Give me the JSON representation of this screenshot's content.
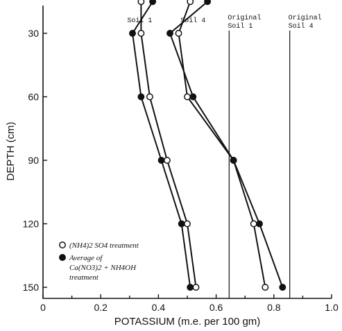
{
  "chart_data": {
    "type": "line",
    "xlabel": "POTASSIUM (m.e. per 100 gm)",
    "ylabel": "DEPTH (cm)",
    "xlim": [
      0,
      1.0
    ],
    "ylim": [
      150,
      0
    ],
    "x_ticks": [
      "0",
      "0.2",
      "0.4",
      "0.6",
      "0.8",
      "1.0"
    ],
    "x_tick_values": [
      0,
      0.2,
      0.4,
      0.6,
      0.8,
      1.0
    ],
    "y_ticks": [
      "30",
      "60",
      "90",
      "120",
      "150"
    ],
    "y_tick_values": [
      30,
      60,
      90,
      120,
      150
    ],
    "y_inverted": true,
    "grid": false,
    "legend_position": "bottom-left",
    "series": [
      {
        "name": "(NH4)2 SO4 treatment",
        "soil": "Soil 1",
        "marker": "open-circle",
        "points": [
          [
            0.34,
            15
          ],
          [
            0.34,
            30
          ],
          [
            0.37,
            60
          ],
          [
            0.43,
            90
          ],
          [
            0.5,
            120
          ],
          [
            0.53,
            150
          ]
        ]
      },
      {
        "name": "Average of Ca(NO3)2 + NH4OH treatment",
        "soil": "Soil 1",
        "marker": "filled-circle",
        "points": [
          [
            0.38,
            15
          ],
          [
            0.31,
            30
          ],
          [
            0.34,
            60
          ],
          [
            0.41,
            90
          ],
          [
            0.48,
            120
          ],
          [
            0.51,
            150
          ]
        ]
      },
      {
        "name": "(NH4)2 SO4 treatment",
        "soil": "Soil 4",
        "marker": "open-circle",
        "points": [
          [
            0.51,
            15
          ],
          [
            0.47,
            30
          ],
          [
            0.5,
            60
          ],
          [
            0.66,
            90
          ],
          [
            0.73,
            120
          ],
          [
            0.77,
            150
          ]
        ]
      },
      {
        "name": "Average of Ca(NO3)2 + NH4OH treatment",
        "soil": "Soil 4",
        "marker": "filled-circle",
        "points": [
          [
            0.57,
            15
          ],
          [
            0.44,
            30
          ],
          [
            0.52,
            60
          ],
          [
            0.66,
            90
          ],
          [
            0.75,
            120
          ],
          [
            0.83,
            150
          ]
        ]
      }
    ],
    "series_labels": [
      {
        "text": "Soil 1",
        "x": 0.335,
        "y": 6
      },
      {
        "text": "Soil 4",
        "x": 0.52,
        "y": 6
      }
    ],
    "reference_lines": [
      {
        "x": 0.645,
        "label_line1": "Original",
        "label_line2": "Soil 1"
      },
      {
        "x": 0.855,
        "label_line1": "Original",
        "label_line2": "Soil 4"
      }
    ],
    "legend": {
      "open_label": "(NH4)2 SO4 treatment",
      "filled_label_line1": "Average of",
      "filled_label_line2": "Ca(NO3)2 + NH4OH",
      "filled_label_line3": "treatment"
    }
  }
}
